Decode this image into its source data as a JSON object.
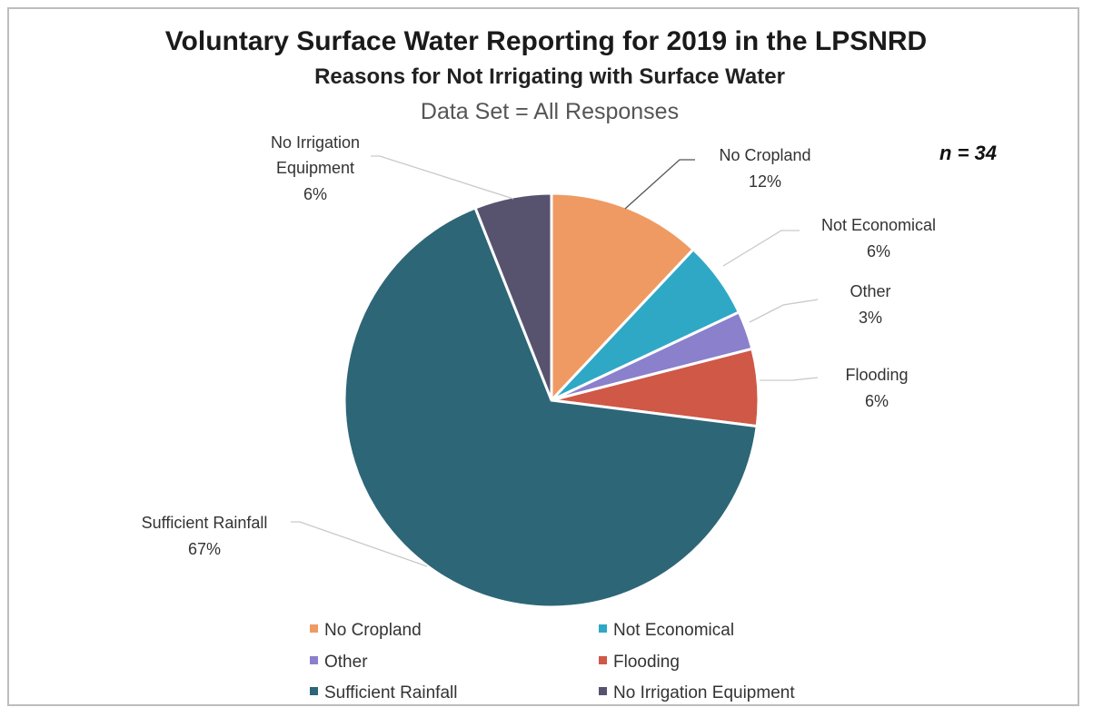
{
  "chart_data": {
    "type": "pie",
    "title": "Voluntary Surface Water Reporting for 2019 in the LPSNRD",
    "subtitle": "Reasons for Not Irrigating with Surface Water",
    "subtitle2": "Data Set = All Responses",
    "annotation": "n = 34",
    "slices": [
      {
        "name": "No Cropland",
        "value": 12,
        "label": "12%",
        "color": "#ef9a62"
      },
      {
        "name": "Not Economical",
        "value": 6,
        "label": "6%",
        "color": "#2fa8c6"
      },
      {
        "name": "Other",
        "value": 3,
        "label": "3%",
        "color": "#8a80cc"
      },
      {
        "name": "Flooding",
        "value": 6,
        "label": "6%",
        "color": "#cf5846"
      },
      {
        "name": "Sufficient Rainfall",
        "value": 67,
        "label": "67%",
        "color": "#2d6677"
      },
      {
        "name": "No Irrigation Equipment",
        "value": 6,
        "label": "6%",
        "color": "#57536f"
      }
    ],
    "legend_placement": "bottom",
    "label_lines": {
      "no_cropland": "No Cropland",
      "not_economical": "Not Economical",
      "other": "Other",
      "flooding": "Flooding",
      "sufficient_rainfall": "Sufficient Rainfall",
      "no_irrigation_1": "No Irrigation",
      "no_irrigation_2": "Equipment"
    }
  }
}
